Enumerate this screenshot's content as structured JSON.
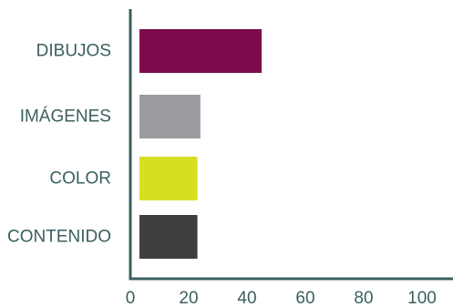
{
  "chart_data": {
    "type": "bar",
    "orientation": "horizontal",
    "categories": [
      "DIBUJOS",
      "IMÁGENES",
      "COLOR",
      "CONTENIDO"
    ],
    "values": [
      45,
      24,
      23,
      23
    ],
    "bar_colors": [
      "#7d0a4a",
      "#999b9e",
      "#d6e021",
      "#3f3f3f"
    ],
    "xlim": [
      0,
      110
    ],
    "xticks": [
      "0",
      "20",
      "40",
      "60",
      "80",
      "100"
    ],
    "tick_values": [
      0,
      20,
      40,
      60,
      80,
      100
    ],
    "grid": false,
    "title": "",
    "xlabel": "",
    "ylabel": ""
  },
  "colors": {
    "axis": "#3b5f5f",
    "label": "#3b5f5f"
  }
}
